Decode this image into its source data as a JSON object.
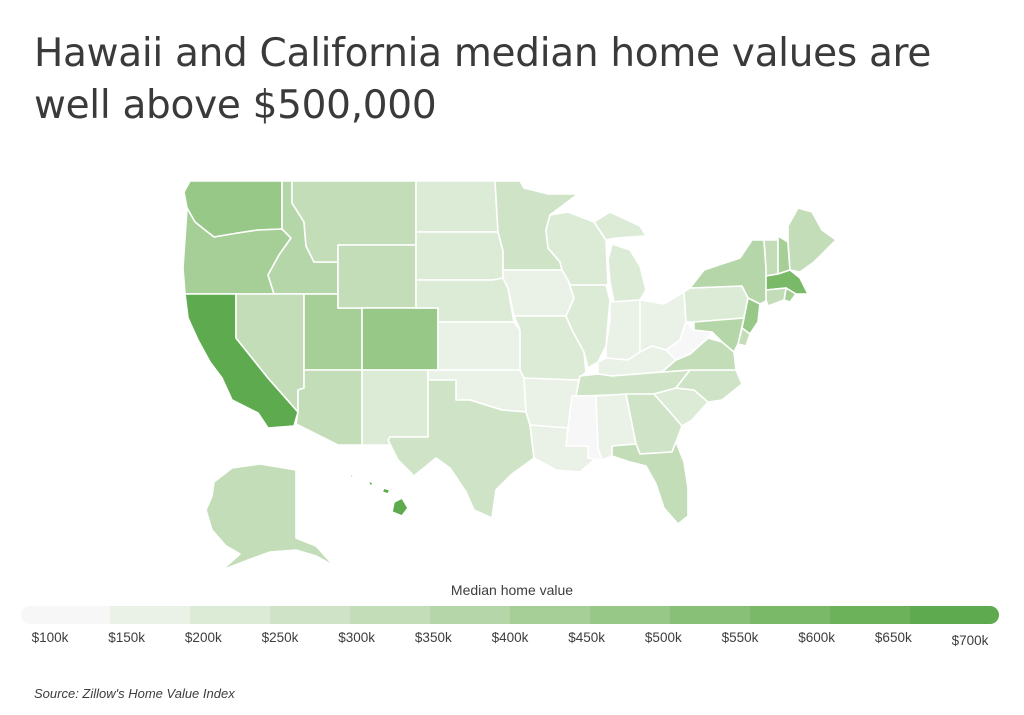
{
  "title": "Hawaii and California median home values are well above $500,000",
  "legend": {
    "title": "Median home value",
    "ticks": [
      "$100k",
      "$150k",
      "$200k",
      "$250k",
      "$300k",
      "$350k",
      "$400k",
      "$450k",
      "$500k",
      "$550k",
      "$600k",
      "$650k",
      "$700k"
    ],
    "colors": [
      "#f7f7f7",
      "#eaf2e7",
      "#dcebd6",
      "#cfe4c7",
      "#c2ddb8",
      "#b4d6a8",
      "#a6cf98",
      "#98c887",
      "#89c077",
      "#7ab967",
      "#6cb25a",
      "#5eab4f"
    ]
  },
  "source": "Source:  Zillow's Home Value Index",
  "chart_data": {
    "type": "choropleth",
    "metric": "Median home value",
    "scale_min": 100000,
    "scale_max": 700000,
    "states": [
      {
        "code": "WA",
        "value": 470000
      },
      {
        "code": "OR",
        "value": 420000
      },
      {
        "code": "CA",
        "value": 650000
      },
      {
        "code": "ID",
        "value": 360000
      },
      {
        "code": "NV",
        "value": 330000
      },
      {
        "code": "UT",
        "value": 410000
      },
      {
        "code": "AZ",
        "value": 340000
      },
      {
        "code": "MT",
        "value": 320000
      },
      {
        "code": "WY",
        "value": 300000
      },
      {
        "code": "CO",
        "value": 480000
      },
      {
        "code": "NM",
        "value": 240000
      },
      {
        "code": "ND",
        "value": 230000
      },
      {
        "code": "SD",
        "value": 240000
      },
      {
        "code": "NE",
        "value": 215000
      },
      {
        "code": "KS",
        "value": 190000
      },
      {
        "code": "OK",
        "value": 165000
      },
      {
        "code": "TX",
        "value": 255000
      },
      {
        "code": "MN",
        "value": 290000
      },
      {
        "code": "IA",
        "value": 190000
      },
      {
        "code": "MO",
        "value": 205000
      },
      {
        "code": "AR",
        "value": 160000
      },
      {
        "code": "LA",
        "value": 185000
      },
      {
        "code": "WI",
        "value": 240000
      },
      {
        "code": "IL",
        "value": 210000
      },
      {
        "code": "MI",
        "value": 210000
      },
      {
        "code": "IN",
        "value": 190000
      },
      {
        "code": "OH",
        "value": 190000
      },
      {
        "code": "KY",
        "value": 175000
      },
      {
        "code": "TN",
        "value": 250000
      },
      {
        "code": "MS",
        "value": 145000
      },
      {
        "code": "AL",
        "value": 180000
      },
      {
        "code": "GA",
        "value": 260000
      },
      {
        "code": "FL",
        "value": 330000
      },
      {
        "code": "SC",
        "value": 240000
      },
      {
        "code": "NC",
        "value": 260000
      },
      {
        "code": "VA",
        "value": 340000
      },
      {
        "code": "WV",
        "value": 140000
      },
      {
        "code": "PA",
        "value": 225000
      },
      {
        "code": "NY",
        "value": 370000
      },
      {
        "code": "VT",
        "value": 300000
      },
      {
        "code": "NH",
        "value": 410000
      },
      {
        "code": "ME",
        "value": 320000
      },
      {
        "code": "MA",
        "value": 550000
      },
      {
        "code": "RI",
        "value": 410000
      },
      {
        "code": "CT",
        "value": 320000
      },
      {
        "code": "NJ",
        "value": 450000
      },
      {
        "code": "DE",
        "value": 330000
      },
      {
        "code": "MD",
        "value": 380000
      },
      {
        "code": "AK",
        "value": 320000
      },
      {
        "code": "HI",
        "value": 710000
      }
    ]
  }
}
